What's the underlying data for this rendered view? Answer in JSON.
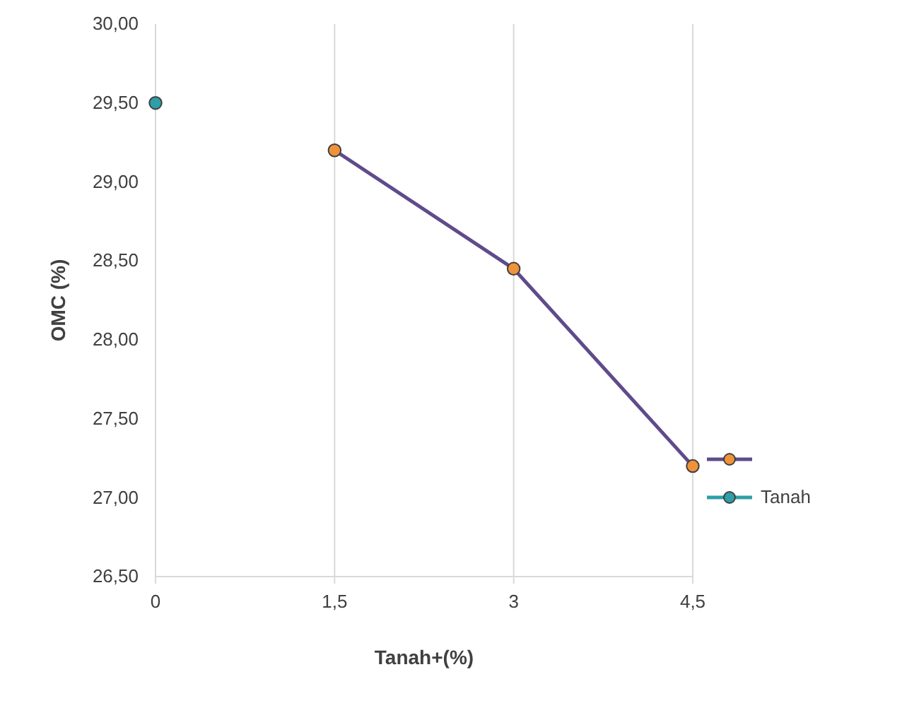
{
  "chart_data": {
    "type": "line",
    "xlabel": "Tanah+(%)",
    "ylabel": "OMC (%)",
    "categories": [
      "0",
      "1,5",
      "3",
      "4,5"
    ],
    "series": [
      {
        "color": "#5f4b8b",
        "colors": [
          null,
          "#f0923a",
          "#f0923a",
          "#f0923a"
        ],
        "values": [
          null,
          29.2,
          28.45,
          27.2
        ]
      },
      {
        "name": "Tanah",
        "color": "#2e9ea8",
        "values": [
          29.5,
          null,
          null,
          null
        ]
      }
    ],
    "ylim": [
      26.5,
      30
    ],
    "yticks": [
      {
        "value": 26.5,
        "label": "26,50"
      },
      {
        "value": 27,
        "label": "27,00"
      },
      {
        "value": 27.5,
        "label": "27,50"
      },
      {
        "value": 28,
        "label": "28,00"
      },
      {
        "value": 28.5,
        "label": "28,50"
      },
      {
        "value": 29,
        "label": "29,00"
      },
      {
        "value": 29.5,
        "label": "29,50"
      },
      {
        "value": 30,
        "label": "30,00"
      }
    ],
    "grid": "x",
    "legend": "right",
    "marker": "circle",
    "line_style": "solid"
  }
}
